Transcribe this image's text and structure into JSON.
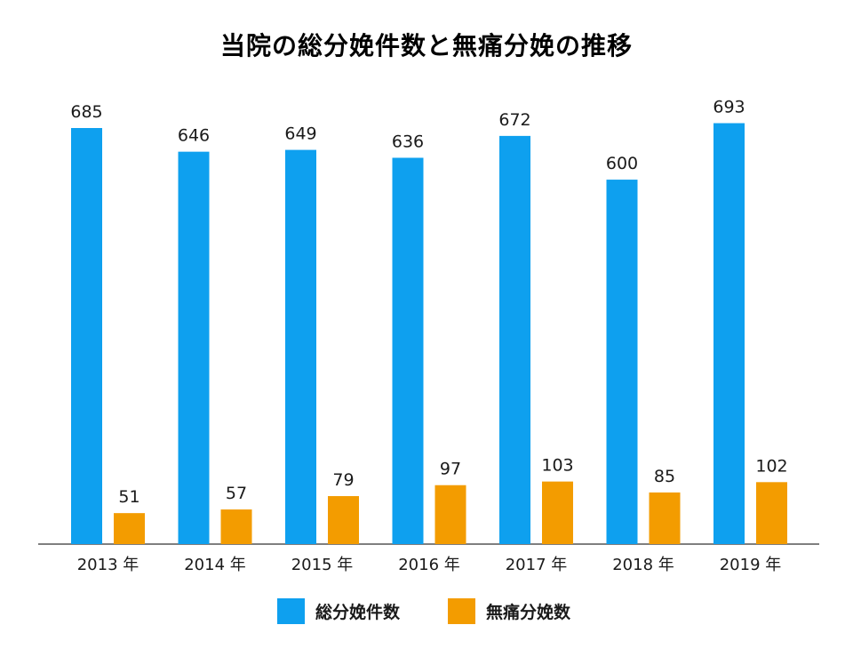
{
  "chart_data": {
    "type": "bar",
    "title": "当院の総分娩件数と無痛分娩の推移",
    "categories": [
      "2013 年",
      "2014 年",
      "2015 年",
      "2016 年",
      "2017 年",
      "2018 年",
      "2019 年"
    ],
    "series": [
      {
        "name": "総分娩件数",
        "color": "#0ea0ef",
        "values": [
          685,
          646,
          649,
          636,
          672,
          600,
          693
        ]
      },
      {
        "name": "無痛分娩数",
        "color": "#f39c00",
        "values": [
          51,
          57,
          79,
          97,
          103,
          85,
          102
        ]
      }
    ],
    "xlabel": "",
    "ylabel": "",
    "ylim": [
      0,
      780
    ],
    "grid": false,
    "legend": "bottom"
  }
}
